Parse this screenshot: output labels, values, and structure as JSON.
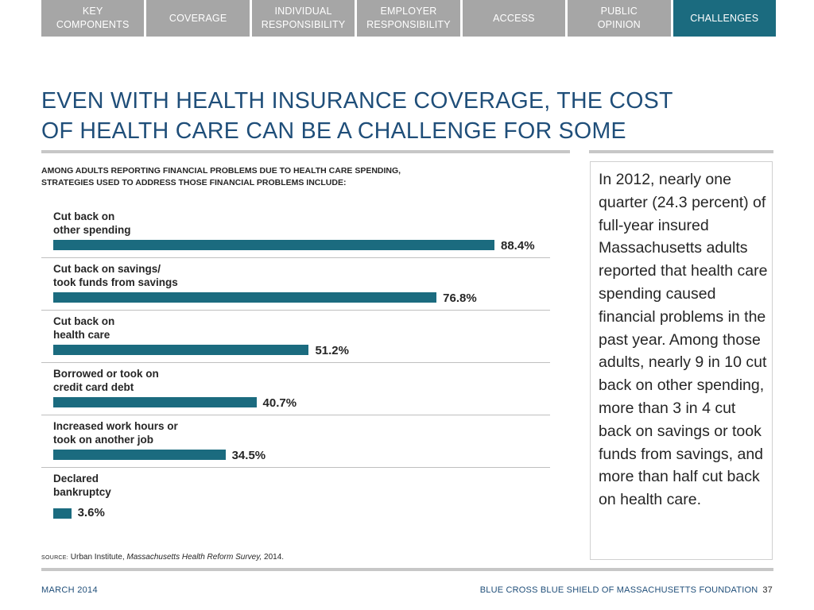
{
  "nav": {
    "tabs": [
      {
        "label": "KEY\nCOMPONENTS",
        "active": false
      },
      {
        "label": "COVERAGE",
        "active": false
      },
      {
        "label": "INDIVIDUAL\nRESPONSIBILITY",
        "active": false
      },
      {
        "label": "EMPLOYER\nRESPONSIBILITY",
        "active": false
      },
      {
        "label": "ACCESS",
        "active": false
      },
      {
        "label": "PUBLIC\nOPINION",
        "active": false
      },
      {
        "label": "CHALLENGES",
        "active": true
      }
    ]
  },
  "title": "EVEN WITH HEALTH INSURANCE COVERAGE, THE COST OF HEALTH CARE CAN BE A CHALLENGE FOR SOME",
  "subtitle_line1": "AMONG ADULTS REPORTING FINANCIAL PROBLEMS DUE TO HEALTH CARE SPENDING,",
  "subtitle_line2": "STRATEGIES USED TO ADDRESS THOSE FINANCIAL PROBLEMS INCLUDE:",
  "chart_data": {
    "type": "bar",
    "orientation": "horizontal",
    "categories": [
      "Cut back on\nother spending",
      "Cut back on savings/\ntook funds from savings",
      "Cut back on\nhealth care",
      "Borrowed or took on\ncredit card debt",
      "Increased work hours or\ntook on another job",
      "Declared\nbankruptcy"
    ],
    "values": [
      88.4,
      76.8,
      51.2,
      40.7,
      34.5,
      3.6
    ],
    "value_labels": [
      "88.4%",
      "76.8%",
      "51.2%",
      "40.7%",
      "34.5%",
      "3.6%"
    ],
    "unit": "%",
    "xlim": [
      0,
      100
    ],
    "grid": false,
    "bar_color": "#1b6b7f"
  },
  "note": "In 2012, nearly one quarter (24.3 percent) of full-year insured Massachusetts adults reported that health care spending caused financial problems in the past year. Among those adults, nearly 9 in 10 cut back on other spending, more than 3 in 4 cut back on savings or took funds from savings, and more than half cut back on health care.",
  "source": {
    "tag": "SOURCE:",
    "text_before": "Urban Institute,",
    "publication": "Massachusetts Health Reform Survey,",
    "year": "2014."
  },
  "footer": {
    "date": "MARCH 2014",
    "org": "BLUE CROSS BLUE SHIELD OF MASSACHUSETTS FOUNDATION",
    "page": "37"
  },
  "colors": {
    "accent": "#1b6b7f",
    "tab_inactive": "#a6a6a6",
    "title": "#1f4e79"
  }
}
